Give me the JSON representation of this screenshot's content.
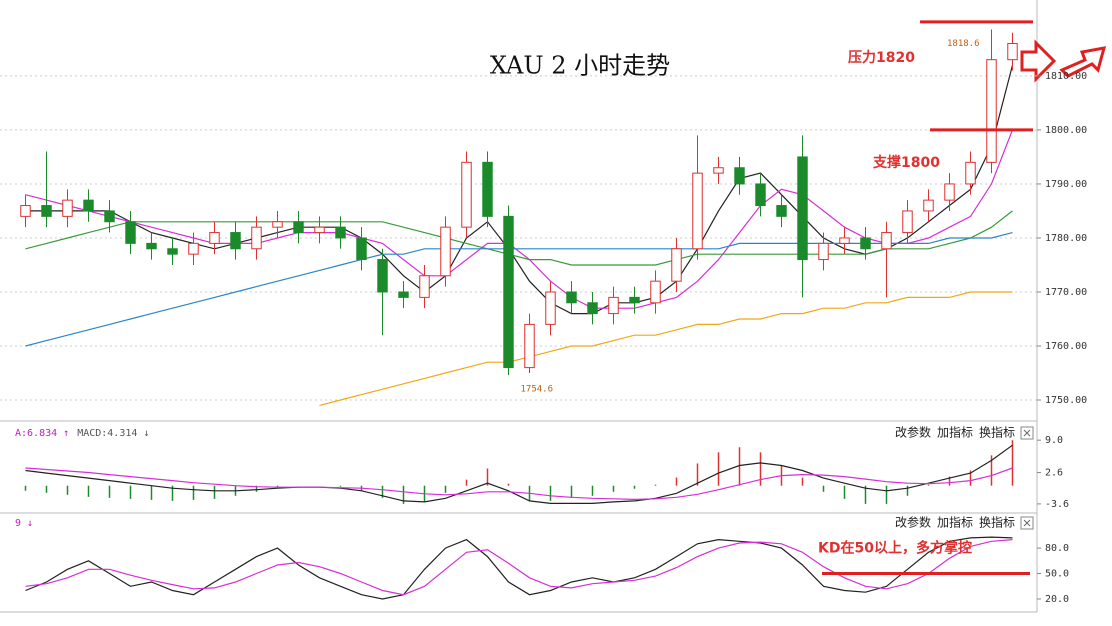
{
  "chart_data": [
    {
      "type": "candlestick",
      "title": "XAU 2 小时走势",
      "ylim": [
        1746.3,
        1822.2
      ],
      "yticks": [
        {
          "value": 1750,
          "label": "1750.00"
        },
        {
          "value": 1760,
          "label": "1760.00"
        },
        {
          "value": 1770,
          "label": "1770.00"
        },
        {
          "value": 1780,
          "label": "1780.00"
        },
        {
          "value": 1790,
          "label": "1790.00"
        },
        {
          "value": 1800,
          "label": "1800.00"
        },
        {
          "value": 1810,
          "label": "1810.00"
        }
      ],
      "grid": true,
      "up_color": "#e03030",
      "down_color": "#1a8a2a",
      "open": [
        1784,
        1786,
        1784,
        1787,
        1785,
        1783,
        1779,
        1778,
        1777,
        1779,
        1781,
        1778,
        1782,
        1783,
        1781,
        1782,
        1780,
        1776,
        1770,
        1769,
        1773,
        1782,
        1794,
        1784,
        1756,
        1764,
        1770,
        1768,
        1766,
        1769,
        1768,
        1772,
        1778,
        1792,
        1793,
        1790,
        1786,
        1795,
        1776,
        1779,
        1780,
        1778,
        1781,
        1785,
        1787,
        1790,
        1794,
        1813
      ],
      "high": [
        1788,
        1796,
        1789,
        1789,
        1787,
        1785,
        1781,
        1780,
        1781,
        1783,
        1783,
        1784,
        1785,
        1785,
        1784,
        1784,
        1782,
        1778,
        1772,
        1775,
        1784,
        1796,
        1796,
        1786,
        1766,
        1772,
        1772,
        1770,
        1771,
        1771,
        1774,
        1780,
        1799,
        1795,
        1795,
        1792,
        1788,
        1799,
        1781,
        1782,
        1782,
        1783,
        1787,
        1789,
        1792,
        1796,
        1818.6,
        1818
      ],
      "low": [
        1782,
        1782,
        1782,
        1783,
        1781,
        1777,
        1776,
        1775,
        1775,
        1777,
        1776,
        1776,
        1780,
        1779,
        1779,
        1778,
        1774,
        1762,
        1767,
        1767,
        1771,
        1780,
        1782,
        1754.6,
        1755,
        1762,
        1766,
        1764,
        1764,
        1766,
        1766,
        1770,
        1776,
        1790,
        1788,
        1784,
        1782,
        1769,
        1774,
        1777,
        1776,
        1769,
        1779,
        1783,
        1785,
        1788,
        1792,
        1811
      ],
      "close": [
        1786,
        1784,
        1787,
        1785,
        1783,
        1779,
        1778,
        1777,
        1779,
        1781,
        1778,
        1782,
        1783,
        1781,
        1782,
        1780,
        1776,
        1770,
        1769,
        1773,
        1782,
        1794,
        1784,
        1756,
        1764,
        1770,
        1768,
        1766,
        1769,
        1768,
        1772,
        1778,
        1792,
        1793,
        1790,
        1786,
        1784,
        1776,
        1779,
        1780,
        1778,
        1781,
        1785,
        1787,
        1790,
        1794,
        1813,
        1816
      ],
      "lines": [
        {
          "color": "#222222",
          "values": [
            1785,
            1785,
            1785,
            1785,
            1785,
            1783,
            1781,
            1780,
            1779,
            1778,
            1779,
            1780,
            1781,
            1782,
            1782,
            1782,
            1780,
            1777,
            1773,
            1770,
            1773,
            1780,
            1783,
            1778,
            1772,
            1768,
            1766,
            1766,
            1768,
            1768,
            1769,
            1772,
            1778,
            1785,
            1791,
            1792,
            1788,
            1784,
            1780,
            1778,
            1777,
            1778,
            1780,
            1783,
            1786,
            1789,
            1797,
            1812
          ]
        },
        {
          "color": "#d62fd6",
          "values": [
            1788,
            1787,
            1786,
            1785,
            1784,
            1783,
            1782,
            1781,
            1780,
            1779,
            1779,
            1779,
            1780,
            1781,
            1781,
            1781,
            1780,
            1779,
            1776,
            1773,
            1773,
            1776,
            1779,
            1779,
            1776,
            1772,
            1769,
            1767,
            1767,
            1767,
            1768,
            1769,
            1772,
            1776,
            1781,
            1786,
            1789,
            1788,
            1785,
            1782,
            1780,
            1779,
            1779,
            1780,
            1782,
            1784,
            1790,
            1800
          ]
        },
        {
          "color": "#3a9a3a",
          "values": [
            1778,
            1779,
            1780,
            1781,
            1782,
            1783,
            1783,
            1783,
            1783,
            1783,
            1783,
            1783,
            1783,
            1783,
            1783,
            1783,
            1783,
            1783,
            1782,
            1781,
            1780,
            1779,
            1778,
            1777,
            1776,
            1776,
            1775,
            1775,
            1775,
            1775,
            1775,
            1776,
            1777,
            1777,
            1777,
            1777,
            1777,
            1777,
            1777,
            1777,
            1777,
            1778,
            1778,
            1778,
            1779,
            1780,
            1782,
            1785
          ]
        },
        {
          "color": "#2a86c8",
          "values": [
            1760,
            1761,
            1762,
            1763,
            1764,
            1765,
            1766,
            1767,
            1768,
            1769,
            1770,
            1771,
            1772,
            1773,
            1774,
            1775,
            1776,
            1777,
            1777,
            1778,
            1778,
            1778,
            1778,
            1778,
            1778,
            1778,
            1778,
            1778,
            1778,
            1778,
            1778,
            1778,
            1778,
            1778,
            1779,
            1779,
            1779,
            1779,
            1779,
            1779,
            1779,
            1779,
            1779,
            1779,
            1780,
            1780,
            1780,
            1781
          ]
        },
        {
          "color": "#f0a818",
          "values": [
            null,
            null,
            null,
            null,
            null,
            null,
            null,
            null,
            null,
            null,
            null,
            null,
            null,
            null,
            1749,
            1750,
            1751,
            1752,
            1753,
            1754,
            1755,
            1756,
            1757,
            1757,
            1758,
            1759,
            1760,
            1760,
            1761,
            1762,
            1762,
            1763,
            1764,
            1764,
            1765,
            1765,
            1766,
            1766,
            1767,
            1767,
            1768,
            1768,
            1769,
            1769,
            1769,
            1770,
            1770,
            1770
          ]
        }
      ],
      "annotations": [
        {
          "text": "压力1820",
          "value": 1820
        },
        {
          "text": "支撑1800",
          "value": 1800
        }
      ]
    },
    {
      "type": "macd",
      "ylim": [
        -5.2,
        12
      ],
      "yticks": [
        {
          "value": 9,
          "label": "9.0"
        },
        2.6,
        -3.6
      ],
      "header": [
        "A:6.834 ↑",
        "MACD:4.314 ↓"
      ],
      "buttons": [
        "改参数",
        "加指标",
        "换指标"
      ],
      "up_color": "#e03030",
      "down_color": "#1a8a2a",
      "bars": [
        -1,
        -1.4,
        -1.8,
        -2.2,
        -2.4,
        -2.6,
        -2.8,
        -3,
        -2.8,
        -2.6,
        -2,
        -1.2,
        -0.4,
        0,
        0,
        -0.2,
        -1,
        -2.4,
        -3.6,
        -3.2,
        -1.4,
        1.2,
        3.4,
        0.4,
        -3,
        -3,
        -2.4,
        -2,
        -1.2,
        -0.6,
        0.2,
        1.6,
        4.4,
        6.6,
        7.6,
        6.6,
        4,
        1.6,
        -1.2,
        -2.6,
        -3.6,
        -3.6,
        -2,
        0.2,
        1.8,
        3,
        6,
        9
      ],
      "lines": [
        {
          "color": "#222222",
          "values": [
            3,
            2.5,
            2,
            1.5,
            1,
            0.5,
            0,
            -0.5,
            -0.8,
            -1,
            -1,
            -0.8,
            -0.5,
            -0.3,
            -0.3,
            -0.5,
            -1,
            -2,
            -3,
            -3.2,
            -2.5,
            -1,
            0.5,
            -1,
            -3,
            -3.5,
            -3.5,
            -3.5,
            -3.2,
            -3,
            -2.5,
            -1.5,
            0.5,
            2.5,
            4,
            4.5,
            4,
            3,
            1.5,
            0.5,
            -0.5,
            -1,
            -0.5,
            0.5,
            1.5,
            2.5,
            5,
            8
          ]
        },
        {
          "color": "#d62fd6",
          "values": [
            3.5,
            3.2,
            2.9,
            2.6,
            2.2,
            1.8,
            1.4,
            1,
            0.6,
            0.3,
            0,
            -0.2,
            -0.3,
            -0.3,
            -0.3,
            -0.4,
            -0.5,
            -0.8,
            -1.2,
            -1.6,
            -1.8,
            -1.6,
            -1.2,
            -1.2,
            -1.5,
            -2,
            -2.3,
            -2.5,
            -2.6,
            -2.7,
            -2.6,
            -2.3,
            -1.7,
            -0.8,
            0.2,
            1.2,
            2,
            2.2,
            2.1,
            1.8,
            1.3,
            0.8,
            0.5,
            0.4,
            0.6,
            1,
            2,
            3.5
          ]
        }
      ]
    },
    {
      "type": "kd",
      "ylim": [
        7,
        119
      ],
      "yticks": [
        {
          "value": 80,
          "label": "80.0"
        },
        {
          "value": 50,
          "label": "50.0"
        },
        {
          "value": 20,
          "label": "20.0"
        }
      ],
      "header": [
        "9 ↓"
      ],
      "buttons": [
        "改参数",
        "加指标",
        "换指标"
      ],
      "lines": [
        {
          "color": "#222222",
          "values": [
            30,
            40,
            55,
            65,
            50,
            35,
            40,
            30,
            25,
            40,
            55,
            70,
            80,
            60,
            45,
            35,
            25,
            20,
            25,
            55,
            80,
            90,
            70,
            40,
            25,
            30,
            40,
            45,
            40,
            45,
            55,
            70,
            85,
            90,
            88,
            86,
            80,
            60,
            35,
            30,
            28,
            35,
            55,
            75,
            88,
            92,
            93,
            92
          ]
        },
        {
          "color": "#d62fd6",
          "values": [
            35,
            38,
            45,
            55,
            55,
            48,
            42,
            37,
            32,
            33,
            40,
            50,
            60,
            63,
            58,
            50,
            40,
            30,
            25,
            35,
            55,
            75,
            78,
            62,
            45,
            35,
            33,
            38,
            40,
            42,
            47,
            57,
            70,
            80,
            86,
            87,
            85,
            75,
            58,
            45,
            35,
            32,
            38,
            50,
            68,
            82,
            88,
            90
          ]
        }
      ],
      "annotations": [
        {
          "text": "KD在50以上，多方掌控",
          "value": 50
        }
      ]
    }
  ]
}
